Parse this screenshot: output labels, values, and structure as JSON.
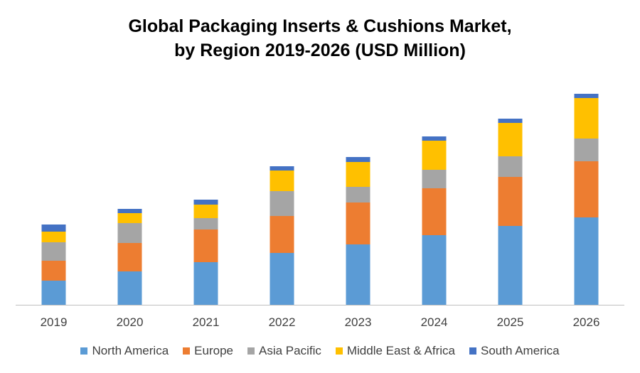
{
  "chart_data": {
    "type": "bar",
    "stacked": true,
    "title": "Global Packaging Inserts & Cushions Market,",
    "subtitle": "by Region 2019-2026 (USD Million)",
    "xlabel": "",
    "ylabel": "",
    "categories": [
      "2019",
      "2020",
      "2021",
      "2022",
      "2023",
      "2024",
      "2025",
      "2026"
    ],
    "series": [
      {
        "name": "North America",
        "color": "#5B9BD5",
        "values": [
          34,
          47,
          60,
          73,
          85,
          98,
          111,
          123
        ]
      },
      {
        "name": "Europe",
        "color": "#ED7D31",
        "values": [
          28,
          40,
          46,
          52,
          59,
          66,
          69,
          79
        ]
      },
      {
        "name": "Asia Pacific",
        "color": "#A5A5A5",
        "values": [
          26,
          28,
          16,
          35,
          22,
          26,
          29,
          32
        ]
      },
      {
        "name": "Middle East & Africa",
        "color": "#FFC000",
        "values": [
          15,
          14,
          19,
          29,
          35,
          41,
          47,
          57
        ]
      },
      {
        "name": "South America",
        "color": "#4472C4",
        "values": [
          10,
          6,
          7,
          6,
          7,
          6,
          6,
          6
        ]
      }
    ],
    "y_axis_visible": false,
    "grid": false,
    "legend_position": "bottom"
  }
}
